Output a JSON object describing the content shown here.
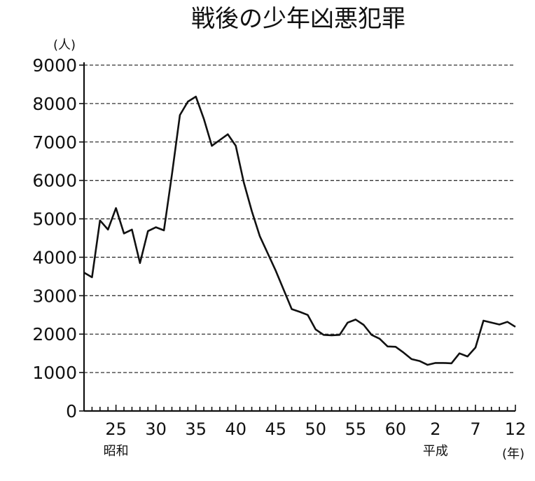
{
  "chart_data": {
    "type": "line",
    "title": "戦後の少年凶悪犯罪",
    "y_unit": "(人)",
    "x_unit": "(年)",
    "ylim": [
      0,
      9000
    ],
    "yticks": [
      0,
      1000,
      2000,
      3000,
      4000,
      5000,
      6000,
      7000,
      8000,
      9000
    ],
    "ytick_labels": [
      "0",
      "1000",
      "2000",
      "3000",
      "4000",
      "5000",
      "6000",
      "7000",
      "8000",
      "9000"
    ],
    "grid": true,
    "xlim": [
      1946,
      2000
    ],
    "x_tick_labels": [
      {
        "year": 1950,
        "label": "25"
      },
      {
        "year": 1955,
        "label": "30"
      },
      {
        "year": 1960,
        "label": "35"
      },
      {
        "year": 1965,
        "label": "40"
      },
      {
        "year": 1970,
        "label": "45"
      },
      {
        "year": 1975,
        "label": "50"
      },
      {
        "year": 1980,
        "label": "55"
      },
      {
        "year": 1985,
        "label": "60"
      },
      {
        "year": 1990,
        "label": "2"
      },
      {
        "year": 1995,
        "label": "7"
      },
      {
        "year": 2000,
        "label": "12"
      }
    ],
    "era_labels": [
      {
        "year": 1950,
        "label": "昭和"
      },
      {
        "year": 1990,
        "label": "平成"
      }
    ],
    "series": [
      {
        "x": [
          1946,
          1947,
          1948,
          1949,
          1950,
          1951,
          1952,
          1953,
          1954,
          1955,
          1956,
          1957,
          1958,
          1959,
          1960,
          1961,
          1962,
          1963,
          1964,
          1965,
          1966,
          1967,
          1968,
          1969,
          1970,
          1971,
          1972,
          1973,
          1974,
          1975,
          1976,
          1977,
          1978,
          1979,
          1980,
          1981,
          1982,
          1983,
          1984,
          1985,
          1986,
          1987,
          1988,
          1989,
          1990,
          1991,
          1992,
          1993,
          1994,
          1995,
          1996,
          1997,
          1998,
          1999,
          2000
        ],
        "y": [
          3600,
          3480,
          4960,
          4720,
          5280,
          4620,
          4720,
          3850,
          4680,
          4780,
          4700,
          6150,
          7700,
          8050,
          8180,
          7600,
          6900,
          7050,
          7200,
          6900,
          5950,
          5200,
          4550,
          4100,
          3650,
          3150,
          2650,
          2580,
          2500,
          2120,
          1980,
          1970,
          1980,
          2300,
          2380,
          2240,
          1980,
          1880,
          1680,
          1670,
          1520,
          1350,
          1300,
          1200,
          1250,
          1250,
          1240,
          1500,
          1420,
          1650,
          2350,
          2300,
          2250,
          2320,
          2190
        ]
      }
    ]
  }
}
